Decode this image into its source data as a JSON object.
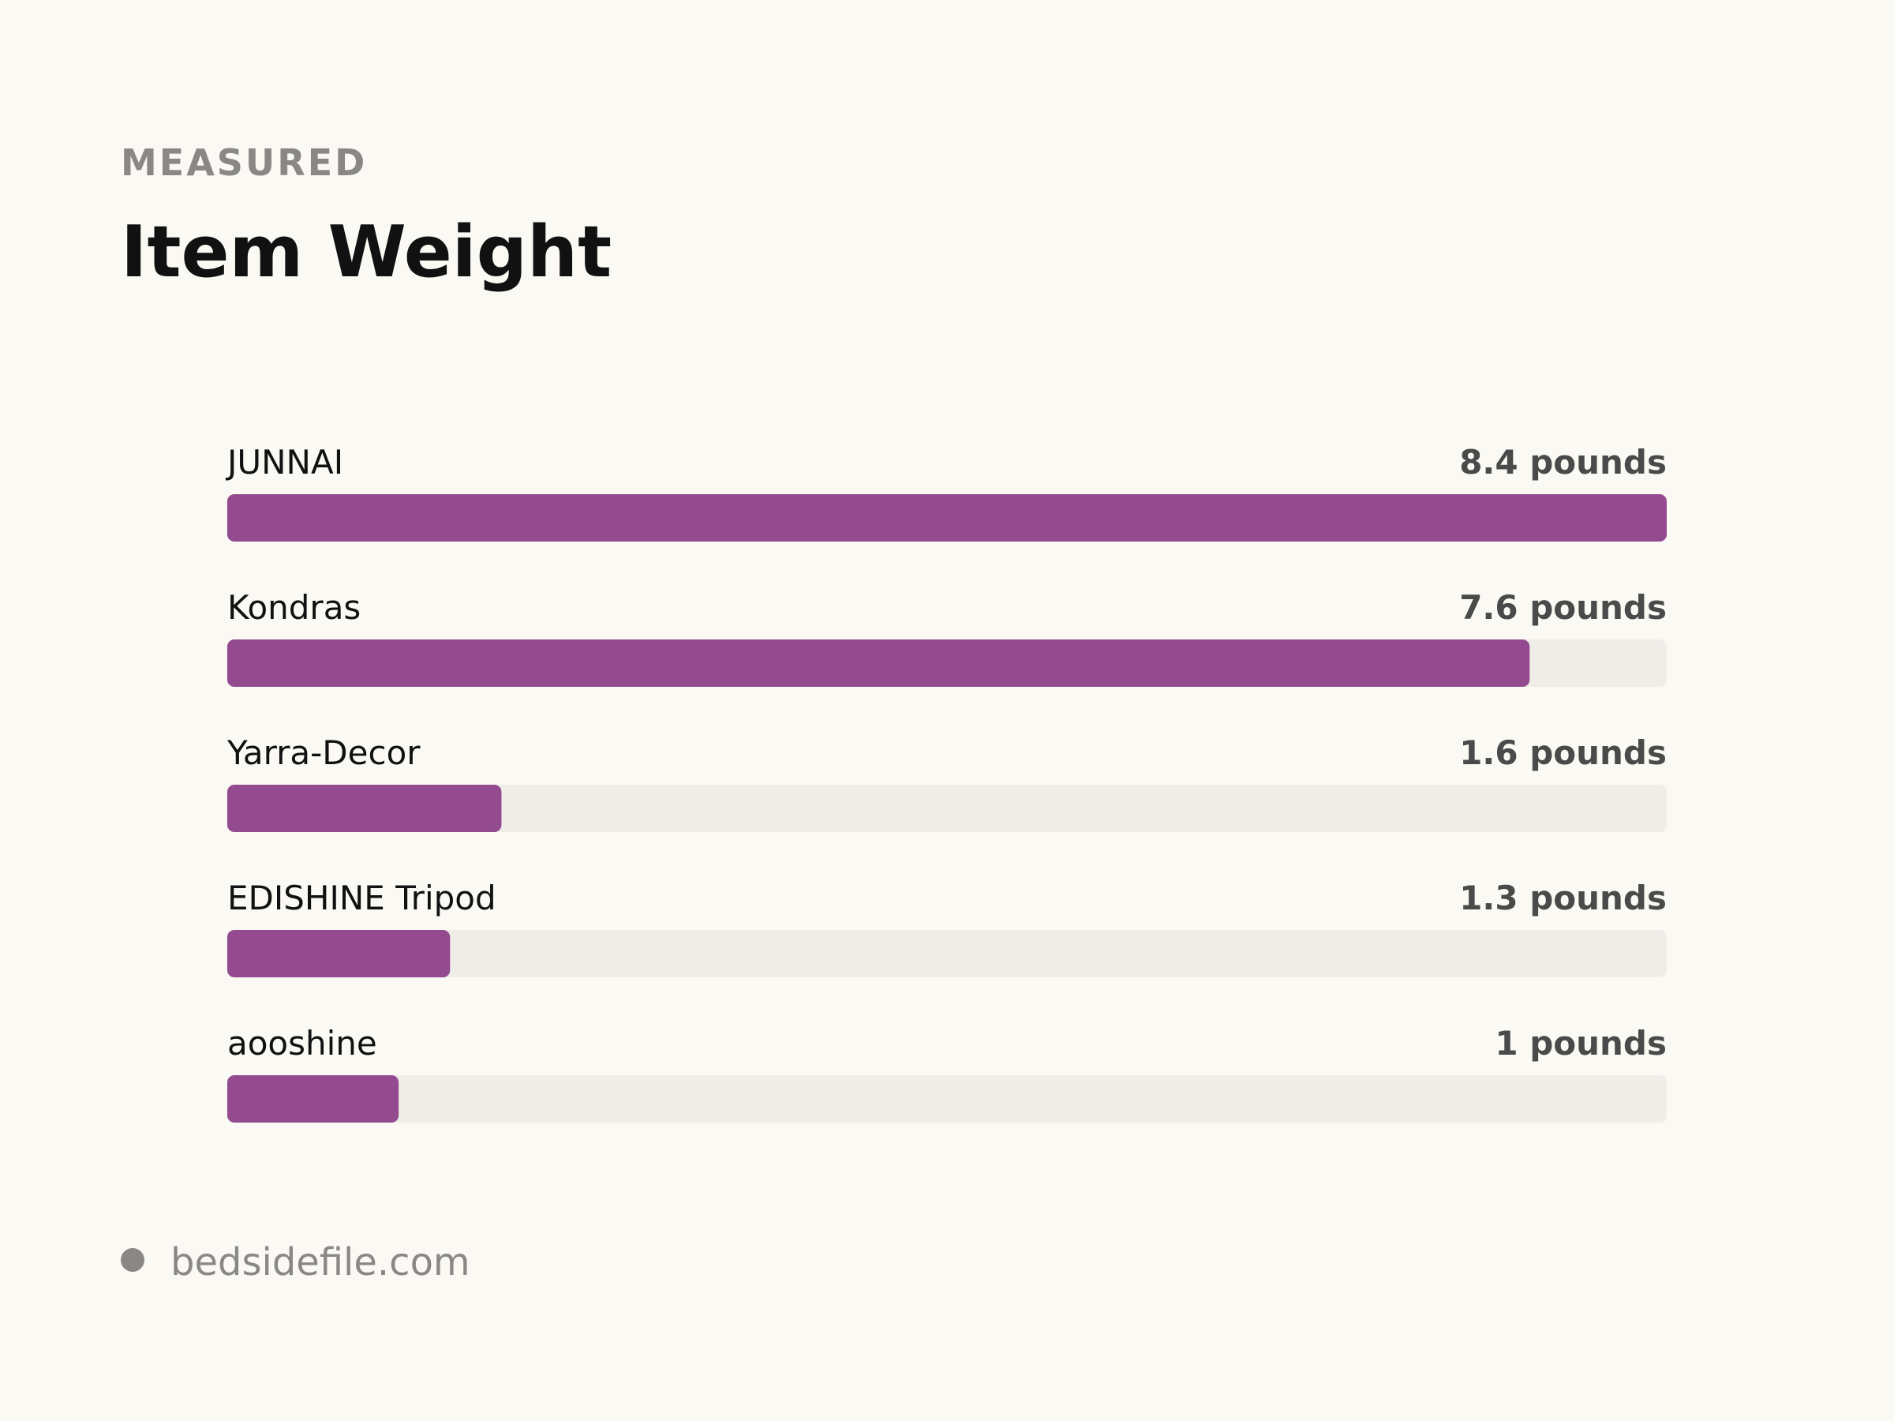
{
  "chart_data": {
    "type": "bar",
    "orientation": "horizontal",
    "eyebrow": "MEASURED",
    "title": "Item Weight",
    "categories": [
      "JUNNAI",
      "Kondras",
      "Yarra-Decor",
      "EDISHINE Tripod",
      "aooshine"
    ],
    "values": [
      8.4,
      7.6,
      1.6,
      1.3,
      1
    ],
    "value_labels": [
      "8.4 pounds",
      "7.6 pounds",
      "1.6 pounds",
      "1.3 pounds",
      "1 pounds"
    ],
    "color": "#944a8f",
    "source": "bedsidefile.com"
  }
}
